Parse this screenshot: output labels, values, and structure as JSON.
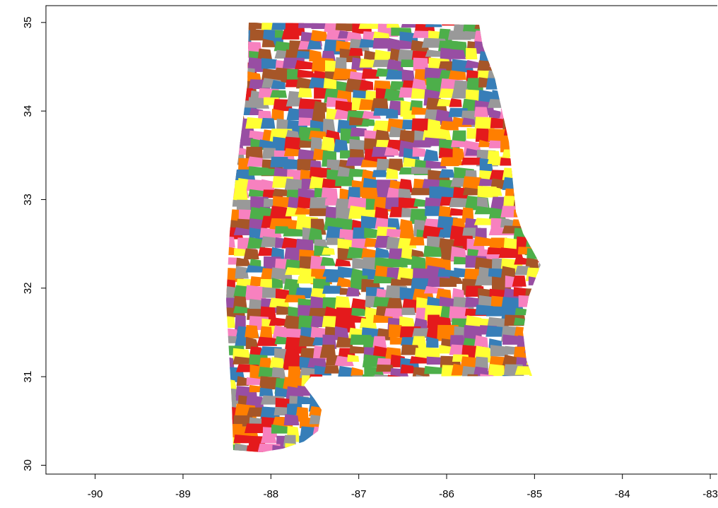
{
  "chart_data": {
    "type": "map",
    "xlim": [
      -90.56,
      -82.92
    ],
    "ylim": [
      29.9,
      35.19
    ],
    "xticks": [
      -90,
      -89,
      -88,
      -87,
      -86,
      -85,
      -84,
      -83
    ],
    "yticks": [
      30,
      31,
      32,
      33,
      34,
      35
    ],
    "palette": [
      "#e41a1c",
      "#377eb8",
      "#4daf4a",
      "#984ea3",
      "#ff7f00",
      "#ffff33",
      "#a65628",
      "#f781bf",
      "#999999"
    ]
  }
}
